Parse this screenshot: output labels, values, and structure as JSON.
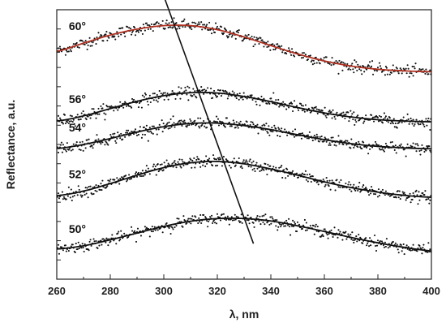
{
  "chart_data": {
    "type": "scatter",
    "title": "",
    "xlabel": "λ, nm",
    "ylabel": "Reflectance, a.u.",
    "xlim": [
      260,
      400
    ],
    "x_ticks": [
      260,
      280,
      300,
      320,
      340,
      360,
      380,
      400
    ],
    "y_ticks_labeled": false,
    "grid": false,
    "legend": "none",
    "series": [
      {
        "name": "60°",
        "fit_color": "#b03020",
        "peak_x": 307,
        "fit_points": [
          [
            260,
            0.846
          ],
          [
            270,
            0.876
          ],
          [
            280,
            0.906
          ],
          [
            290,
            0.928
          ],
          [
            300,
            0.941
          ],
          [
            310,
            0.941
          ],
          [
            320,
            0.926
          ],
          [
            330,
            0.899
          ],
          [
            340,
            0.867
          ],
          [
            350,
            0.836
          ],
          [
            360,
            0.81
          ],
          [
            370,
            0.791
          ],
          [
            380,
            0.779
          ],
          [
            390,
            0.773
          ],
          [
            400,
            0.77
          ]
        ]
      },
      {
        "name": "56°",
        "fit_color": "#111111",
        "peak_x": 313,
        "fit_points": [
          [
            260,
            0.587
          ],
          [
            270,
            0.606
          ],
          [
            280,
            0.633
          ],
          [
            290,
            0.66
          ],
          [
            300,
            0.681
          ],
          [
            310,
            0.692
          ],
          [
            320,
            0.691
          ],
          [
            330,
            0.678
          ],
          [
            340,
            0.659
          ],
          [
            350,
            0.637
          ],
          [
            360,
            0.617
          ],
          [
            370,
            0.602
          ],
          [
            380,
            0.592
          ],
          [
            390,
            0.587
          ],
          [
            400,
            0.584
          ]
        ]
      },
      {
        "name": "54°",
        "fit_color": "#111111",
        "peak_x": 317,
        "fit_points": [
          [
            260,
            0.485
          ],
          [
            270,
            0.5
          ],
          [
            280,
            0.522
          ],
          [
            290,
            0.546
          ],
          [
            300,
            0.566
          ],
          [
            310,
            0.578
          ],
          [
            320,
            0.579
          ],
          [
            330,
            0.57
          ],
          [
            340,
            0.555
          ],
          [
            350,
            0.536
          ],
          [
            360,
            0.518
          ],
          [
            370,
            0.503
          ],
          [
            380,
            0.493
          ],
          [
            390,
            0.487
          ],
          [
            400,
            0.484
          ]
        ]
      },
      {
        "name": "52°",
        "fit_color": "#111111",
        "peak_x": 322,
        "fit_points": [
          [
            260,
            0.31
          ],
          [
            270,
            0.327
          ],
          [
            280,
            0.355
          ],
          [
            290,
            0.386
          ],
          [
            300,
            0.414
          ],
          [
            310,
            0.432
          ],
          [
            320,
            0.437
          ],
          [
            330,
            0.428
          ],
          [
            340,
            0.409
          ],
          [
            350,
            0.386
          ],
          [
            360,
            0.361
          ],
          [
            370,
            0.34
          ],
          [
            380,
            0.323
          ],
          [
            390,
            0.311
          ],
          [
            400,
            0.304
          ]
        ]
      },
      {
        "name": "50°",
        "fit_color": "#111111",
        "peak_x": 328,
        "fit_points": [
          [
            260,
            0.112
          ],
          [
            270,
            0.124
          ],
          [
            280,
            0.146
          ],
          [
            290,
            0.171
          ],
          [
            300,
            0.196
          ],
          [
            310,
            0.215
          ],
          [
            320,
            0.225
          ],
          [
            330,
            0.225
          ],
          [
            340,
            0.216
          ],
          [
            350,
            0.198
          ],
          [
            360,
            0.177
          ],
          [
            370,
            0.155
          ],
          [
            380,
            0.135
          ],
          [
            390,
            0.118
          ],
          [
            400,
            0.105
          ]
        ]
      }
    ],
    "annotations": [
      {
        "type": "line",
        "description": "peak-shift guide line",
        "x1": 300.5,
        "y1": 1.037,
        "x2": 333.5,
        "y2": 0.132
      }
    ]
  }
}
